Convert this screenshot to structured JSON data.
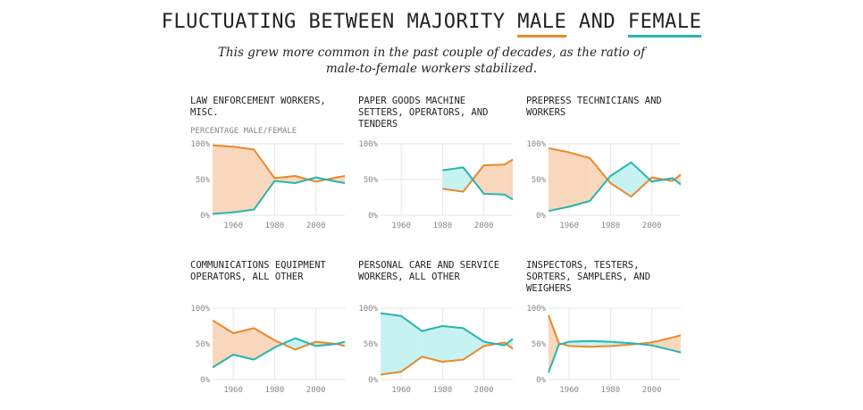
{
  "header": {
    "title_prefix": "FLUCTUATING BETWEEN MAJORITY ",
    "title_male": "MALE",
    "title_and": " AND ",
    "title_female": "FEMALE",
    "subtitle": "This grew more common in the past couple of decades, as the ratio of male-to-female workers stabilized."
  },
  "colors": {
    "male": "#e8892b",
    "female": "#27b5ad",
    "male_fill": "#f8d7bd",
    "female_fill": "#c6f2f2",
    "grid": "#e6e6e6"
  },
  "y_axis_label": "PERCENTAGE MALE/FEMALE",
  "chart_data": [
    {
      "type": "area",
      "title": "LAW ENFORCEMENT WORKERS, MISC.",
      "ylabel": "PERCENTAGE MALE/FEMALE",
      "xlim": [
        1950,
        2014
      ],
      "ylim": [
        0,
        100
      ],
      "x_ticks": [
        1960,
        1980,
        2000
      ],
      "y_ticks": [
        "0%",
        "50%",
        "100%"
      ],
      "x": [
        1950,
        1960,
        1970,
        1980,
        1990,
        2000,
        2010,
        2014
      ],
      "series": [
        {
          "name": "Male",
          "values": [
            98,
            96,
            92,
            52,
            55,
            47,
            53,
            55
          ]
        },
        {
          "name": "Female",
          "values": [
            2,
            4,
            8,
            48,
            45,
            53,
            47,
            45
          ]
        }
      ]
    },
    {
      "type": "area",
      "title": "PAPER GOODS MACHINE SETTERS, OPERATORS, AND TENDERS",
      "xlim": [
        1950,
        2014
      ],
      "ylim": [
        0,
        100
      ],
      "x_ticks": [
        1960,
        1980,
        2000
      ],
      "y_ticks": [
        "0%",
        "50%",
        "100%"
      ],
      "x": [
        1980,
        1990,
        2000,
        2010,
        2014
      ],
      "series": [
        {
          "name": "Male",
          "values": [
            37,
            33,
            70,
            71,
            78
          ]
        },
        {
          "name": "Female",
          "values": [
            63,
            67,
            30,
            29,
            22
          ]
        }
      ]
    },
    {
      "type": "area",
      "title": "PREPRESS TECHNICIANS AND WORKERS",
      "xlim": [
        1950,
        2014
      ],
      "ylim": [
        0,
        100
      ],
      "x_ticks": [
        1960,
        1980,
        2000
      ],
      "y_ticks": [
        "0%",
        "50%",
        "100%"
      ],
      "x": [
        1950,
        1960,
        1970,
        1980,
        1990,
        2000,
        2010,
        2014
      ],
      "series": [
        {
          "name": "Male",
          "values": [
            94,
            88,
            80,
            45,
            26,
            53,
            48,
            57
          ]
        },
        {
          "name": "Female",
          "values": [
            6,
            12,
            20,
            55,
            74,
            47,
            52,
            43
          ]
        }
      ]
    },
    {
      "type": "area",
      "title": "COMMUNICATIONS EQUIPMENT OPERATORS, ALL OTHER",
      "xlim": [
        1950,
        2014
      ],
      "ylim": [
        0,
        100
      ],
      "x_ticks": [
        1960,
        1980,
        2000
      ],
      "y_ticks": [
        "0%",
        "50%",
        "100%"
      ],
      "x": [
        1950,
        1960,
        1970,
        1980,
        1990,
        2000,
        2010,
        2014
      ],
      "series": [
        {
          "name": "Male",
          "values": [
            83,
            65,
            72,
            55,
            42,
            53,
            50,
            47
          ]
        },
        {
          "name": "Female",
          "values": [
            17,
            35,
            28,
            45,
            58,
            47,
            50,
            53
          ]
        }
      ]
    },
    {
      "type": "area",
      "title": "PERSONAL CARE AND SERVICE WORKERS, ALL OTHER",
      "xlim": [
        1950,
        2014
      ],
      "ylim": [
        0,
        100
      ],
      "x_ticks": [
        1960,
        1980,
        2000
      ],
      "y_ticks": [
        "0%",
        "50%",
        "100%"
      ],
      "x": [
        1950,
        1960,
        1970,
        1980,
        1990,
        2000,
        2010,
        2014
      ],
      "series": [
        {
          "name": "Male",
          "values": [
            7,
            11,
            32,
            25,
            28,
            47,
            52,
            43
          ]
        },
        {
          "name": "Female",
          "values": [
            93,
            89,
            68,
            75,
            72,
            53,
            48,
            57
          ]
        }
      ]
    },
    {
      "type": "area",
      "title": "INSPECTORS, TESTERS, SORTERS, SAMPLERS, AND WEIGHERS",
      "xlim": [
        1950,
        2014
      ],
      "ylim": [
        0,
        100
      ],
      "x_ticks": [
        1960,
        1980,
        2000
      ],
      "y_ticks": [
        "0%",
        "50%",
        "100%"
      ],
      "x": [
        1950,
        1955,
        1960,
        1970,
        1980,
        1990,
        2000,
        2010,
        2014
      ],
      "series": [
        {
          "name": "Male",
          "values": [
            90,
            51,
            47,
            46,
            47,
            49,
            52,
            59,
            62
          ]
        },
        {
          "name": "Female",
          "values": [
            10,
            49,
            53,
            54,
            53,
            51,
            48,
            41,
            38
          ]
        }
      ]
    }
  ]
}
